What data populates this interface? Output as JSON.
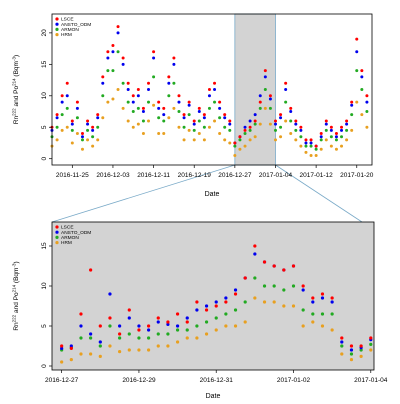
{
  "figure": {
    "colors": {
      "LSCE": "#ff0000",
      "ANSTO_ODM": "#0000ee",
      "ARMON": "#22aa22",
      "HRM": "#e8a020",
      "highlight": "#d3d3d3",
      "connector": "#7aaac8"
    }
  },
  "chart_data": [
    {
      "type": "scatter",
      "panel": "top",
      "xlabel": "Date",
      "ylabel": "Rn_222 and Po_214 (Bqm-3)",
      "ylabel_parts": {
        "main": "Rn",
        "sub1": "222",
        "mid": " and Po",
        "sub2": "214",
        "unit_pre": " (Bqm",
        "unit_sup": "-3",
        "unit_post": ")"
      },
      "xlim": [
        "2016-11-21",
        "2017-01-23"
      ],
      "ylim": [
        -1,
        23
      ],
      "yticks": [
        0,
        5,
        10,
        15,
        20
      ],
      "xtick_labels": [
        "2016-11-25",
        "2016-12-03",
        "2016-12-11",
        "2016-12-19",
        "2016-12-27",
        "2017-01-04",
        "2017-01-12",
        "2017-01-20"
      ],
      "highlight_range": [
        "2016-12-27",
        "2017-01-04"
      ],
      "legend": {
        "position": "top-left",
        "entries": [
          "LSCE",
          "ANSTO_ODM",
          "ARMON",
          "HRM"
        ]
      },
      "x": [
        "2016-11-21",
        "2016-11-22",
        "2016-11-23",
        "2016-11-24",
        "2016-11-25",
        "2016-11-26",
        "2016-11-27",
        "2016-11-28",
        "2016-11-29",
        "2016-11-30",
        "2016-12-01",
        "2016-12-02",
        "2016-12-03",
        "2016-12-04",
        "2016-12-05",
        "2016-12-06",
        "2016-12-07",
        "2016-12-08",
        "2016-12-09",
        "2016-12-10",
        "2016-12-11",
        "2016-12-12",
        "2016-12-13",
        "2016-12-14",
        "2016-12-15",
        "2016-12-16",
        "2016-12-17",
        "2016-12-18",
        "2016-12-19",
        "2016-12-20",
        "2016-12-21",
        "2016-12-22",
        "2016-12-23",
        "2016-12-24",
        "2016-12-25",
        "2016-12-26",
        "2016-12-27",
        "2016-12-28",
        "2016-12-29",
        "2016-12-30",
        "2016-12-31",
        "2017-01-01",
        "2017-01-02",
        "2017-01-03",
        "2017-01-04",
        "2017-01-05",
        "2017-01-06",
        "2017-01-07",
        "2017-01-08",
        "2017-01-09",
        "2017-01-10",
        "2017-01-11",
        "2017-01-12",
        "2017-01-13",
        "2017-01-14",
        "2017-01-15",
        "2017-01-16",
        "2017-01-17",
        "2017-01-18",
        "2017-01-19",
        "2017-01-20",
        "2017-01-21",
        "2017-01-22"
      ],
      "series": [
        {
          "name": "LSCE",
          "values": [
            5,
            7,
            10,
            12,
            6,
            9,
            4,
            6,
            5,
            7,
            13,
            17,
            18,
            21,
            16,
            12,
            10,
            11,
            8,
            12,
            17,
            9,
            8,
            13,
            16,
            10,
            7,
            9,
            6,
            8,
            7,
            11,
            12,
            9,
            7,
            6,
            2.5,
            3.5,
            4.5,
            5,
            6,
            9,
            14,
            10,
            6,
            7,
            12,
            8,
            6,
            5,
            3,
            3,
            2,
            4,
            6,
            5,
            4,
            5,
            6,
            9,
            19,
            14,
            10
          ]
        },
        {
          "name": "ANSTO_ODM",
          "values": [
            4.5,
            6.5,
            9,
            10,
            5.5,
            8,
            3.5,
            5.5,
            4.5,
            6.5,
            12,
            16,
            17,
            20,
            15,
            11,
            9,
            10,
            7.5,
            11,
            16,
            8,
            7,
            12,
            15,
            9,
            6.5,
            8.5,
            5.5,
            7.5,
            6.5,
            10,
            11,
            8,
            6.5,
            5.5,
            2.5,
            3.5,
            5,
            6,
            7,
            10,
            13,
            9.5,
            5.5,
            6.5,
            11,
            7.5,
            5.5,
            4.5,
            2.5,
            2.5,
            2,
            3.5,
            5.5,
            4.5,
            3.5,
            4.5,
            5.5,
            8.5,
            17,
            13,
            9
          ]
        },
        {
          "name": "ARMON",
          "values": [
            3.5,
            5,
            7,
            8,
            4.5,
            6.5,
            3,
            4.5,
            3.5,
            5,
            10,
            14,
            14,
            17,
            12,
            9,
            7.5,
            8,
            6,
            9,
            13,
            6.5,
            6,
            10,
            12,
            7.5,
            5,
            7,
            4.5,
            6,
            5,
            8,
            9,
            6.5,
            5,
            4.5,
            2,
            3,
            4,
            4.5,
            5.5,
            8,
            11,
            8,
            4.5,
            5,
            9,
            6,
            4.5,
            3.5,
            2,
            2,
            1.5,
            3,
            4.5,
            3.5,
            3,
            3.5,
            4.5,
            7,
            14,
            11,
            7.5
          ]
        },
        {
          "name": "HRM",
          "values": [
            2,
            3,
            4.5,
            5,
            2.5,
            4,
            1.5,
            3,
            2,
            3,
            6.5,
            9,
            9.5,
            11,
            8,
            6,
            5,
            5.5,
            4,
            6,
            8.5,
            4,
            4,
            6.5,
            8,
            5,
            3,
            4.5,
            3,
            4,
            3,
            5,
            6,
            4,
            3,
            2.5,
            0.5,
            1.5,
            2,
            3,
            3.5,
            5.5,
            8,
            5.5,
            3,
            3.5,
            6,
            4,
            3,
            2,
            1,
            0.5,
            0.5,
            1.5,
            3,
            2,
            1.5,
            2,
            3,
            4.5,
            9,
            7,
            5
          ]
        }
      ]
    },
    {
      "type": "scatter",
      "panel": "bottom",
      "xlabel": "Date",
      "ylabel": "Rn_222 and Po_214 (Bqm-3)",
      "ylabel_parts": {
        "main": "Rn",
        "sub1": "222",
        "mid": " and Po",
        "sub2": "214",
        "unit_pre": " (Bqm",
        "unit_sup": "-3",
        "unit_post": ")"
      },
      "xlim": [
        "2016-12-26 18:00",
        "2017-01-04 02:00"
      ],
      "ylim": [
        -0.5,
        18
      ],
      "yticks": [
        0,
        5,
        10,
        15
      ],
      "xtick_labels": [
        "2016-12-27",
        "2016-12-29",
        "2016-12-31",
        "2017-01-02",
        "2017-01-04"
      ],
      "legend": {
        "position": "top-left",
        "entries": [
          "LSCE",
          "ANSTO_ODM",
          "ARMON",
          "HRM"
        ]
      },
      "x": [
        "2016-12-27 00:00",
        "2016-12-27 06:00",
        "2016-12-27 12:00",
        "2016-12-27 18:00",
        "2016-12-28 00:00",
        "2016-12-28 06:00",
        "2016-12-28 12:00",
        "2016-12-28 18:00",
        "2016-12-29 00:00",
        "2016-12-29 06:00",
        "2016-12-29 12:00",
        "2016-12-29 18:00",
        "2016-12-30 00:00",
        "2016-12-30 06:00",
        "2016-12-30 12:00",
        "2016-12-30 18:00",
        "2016-12-31 00:00",
        "2016-12-31 06:00",
        "2016-12-31 12:00",
        "2016-12-31 18:00",
        "2017-01-01 00:00",
        "2017-01-01 06:00",
        "2017-01-01 12:00",
        "2017-01-01 18:00",
        "2017-01-02 00:00",
        "2017-01-02 06:00",
        "2017-01-02 12:00",
        "2017-01-02 18:00",
        "2017-01-03 00:00",
        "2017-01-03 06:00",
        "2017-01-03 12:00",
        "2017-01-03 18:00",
        "2017-01-04 00:00"
      ],
      "series": [
        {
          "name": "LSCE",
          "values": [
            2.5,
            2.2,
            6.5,
            12,
            5,
            6,
            4,
            7,
            4.5,
            5,
            6,
            5.5,
            6.5,
            5.5,
            8,
            7,
            7.5,
            8,
            9,
            11,
            15,
            13,
            12.5,
            12,
            12.5,
            10,
            8.5,
            9,
            8.5,
            3.5,
            2.5,
            2.5,
            3.5
          ]
        },
        {
          "name": "ANSTO_ODM",
          "values": [
            2.2,
            2.5,
            5,
            4,
            3,
            9,
            5,
            6,
            5,
            4.5,
            5.5,
            5.2,
            5,
            6,
            7,
            7.5,
            8,
            8.5,
            9.5,
            11,
            14,
            13,
            12.5,
            12,
            12.5,
            9.5,
            8,
            8.5,
            8,
            3,
            2,
            2.3,
            3.3
          ]
        },
        {
          "name": "ARMON",
          "values": [
            2,
            2.3,
            3.5,
            3.5,
            2.5,
            5,
            3.5,
            4,
            3.5,
            3.5,
            4,
            4,
            4.5,
            4.5,
            5,
            5.5,
            6,
            6.5,
            7,
            8,
            11,
            10,
            10,
            9.5,
            10,
            7,
            6.5,
            6.5,
            6.5,
            2.5,
            1.5,
            2,
            2.7
          ]
        },
        {
          "name": "HRM",
          "values": [
            0.5,
            0.8,
            1.5,
            1.5,
            1.2,
            2.5,
            1.8,
            2,
            2,
            2,
            2.5,
            2.5,
            3,
            3.5,
            3.5,
            4,
            4.5,
            5,
            5,
            5.5,
            8.5,
            8,
            8,
            7.5,
            7.5,
            5,
            5.5,
            5,
            4.5,
            1.5,
            0.8,
            1.2,
            2
          ]
        }
      ]
    }
  ]
}
